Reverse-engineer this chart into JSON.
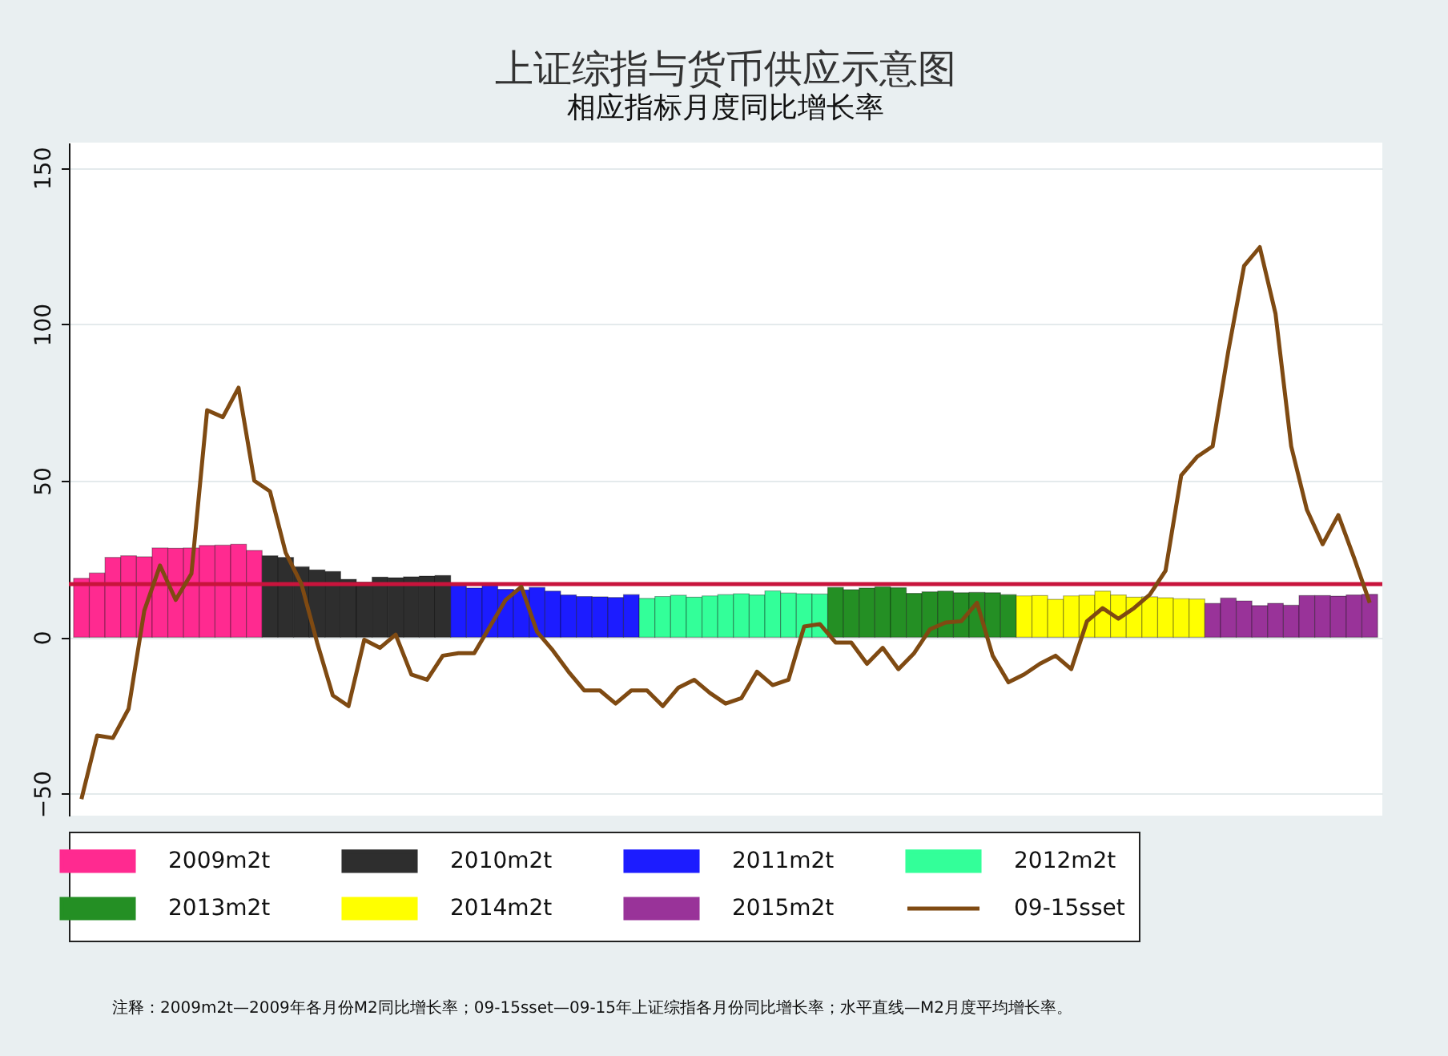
{
  "chart_data": {
    "type": "bar",
    "title": "上证综指与货币供应示意图",
    "subtitle": "相应指标月度同比增长率",
    "annotations": [
      "注释：2009m2t—2009年各月份M2同比增长率；09-15sset—09-15年上证综指各月份同比增长率；水平直线—M2月度平均增长率。"
    ],
    "categories": [
      null,
      null,
      null,
      null,
      null,
      null,
      null,
      null,
      null,
      null,
      null,
      null,
      null,
      null,
      null,
      null,
      null,
      null,
      null,
      null,
      null,
      null,
      null,
      null,
      null,
      null,
      null,
      null,
      null,
      null,
      null,
      null,
      null,
      null,
      null,
      null,
      null,
      null,
      null,
      null,
      null,
      null,
      null,
      null,
      null,
      null,
      null,
      null,
      null,
      null,
      null,
      null,
      null,
      null,
      null,
      null,
      null,
      null,
      null,
      null,
      null,
      null,
      null,
      null,
      null,
      null,
      null,
      null,
      null,
      null,
      null,
      null,
      null,
      null,
      null,
      null,
      null,
      null,
      null,
      null,
      null,
      null,
      null
    ],
    "series": [
      {
        "name": "2009m2t",
        "color": "#ff2a90",
        "values": [
          18.8,
          20.5,
          25.5,
          26,
          25.7,
          28.5,
          28.4,
          28.5,
          29.3,
          29.4,
          29.7,
          27.7,
          null,
          null,
          null,
          null,
          null,
          null,
          null,
          null,
          null,
          null,
          null,
          null,
          null,
          null,
          null,
          null,
          null,
          null,
          null,
          null,
          null,
          null,
          null,
          null,
          null,
          null,
          null,
          null,
          null,
          null,
          null,
          null,
          null,
          null,
          null,
          null,
          null,
          null,
          null,
          null,
          null,
          null,
          null,
          null,
          null,
          null,
          null,
          null,
          null,
          null,
          null,
          null,
          null,
          null,
          null,
          null,
          null,
          null,
          null,
          null,
          null,
          null,
          null,
          null,
          null,
          null,
          null,
          null,
          null,
          null,
          null
        ]
      },
      {
        "name": "2010m2t",
        "color": "#2e2e2e",
        "values": [
          null,
          null,
          null,
          null,
          null,
          null,
          null,
          null,
          null,
          null,
          null,
          null,
          26,
          25.5,
          22.5,
          21.5,
          21,
          18.5,
          17.6,
          19.2,
          19,
          19.3,
          19.5,
          19.7,
          null,
          null,
          null,
          null,
          null,
          null,
          null,
          null,
          null,
          null,
          null,
          null,
          null,
          null,
          null,
          null,
          null,
          null,
          null,
          null,
          null,
          null,
          null,
          null,
          null,
          null,
          null,
          null,
          null,
          null,
          null,
          null,
          null,
          null,
          null,
          null,
          null,
          null,
          null,
          null,
          null,
          null,
          null,
          null,
          null,
          null,
          null,
          null,
          null,
          null,
          null,
          null,
          null,
          null,
          null,
          null,
          null,
          null,
          null
        ]
      },
      {
        "name": "2011m2t",
        "color": "#1c1cff",
        "values": [
          null,
          null,
          null,
          null,
          null,
          null,
          null,
          null,
          null,
          null,
          null,
          null,
          null,
          null,
          null,
          null,
          null,
          null,
          null,
          null,
          null,
          null,
          null,
          null,
          17.2,
          15.7,
          16.6,
          15.3,
          15.1,
          15.9,
          14.7,
          13.5,
          13,
          12.9,
          12.7,
          13.6,
          null,
          null,
          null,
          null,
          null,
          null,
          null,
          null,
          null,
          null,
          null,
          null,
          null,
          null,
          null,
          null,
          null,
          null,
          null,
          null,
          null,
          null,
          null,
          null,
          null,
          null,
          null,
          null,
          null,
          null,
          null,
          null,
          null,
          null,
          null,
          null,
          null,
          null,
          null,
          null,
          null,
          null,
          null,
          null,
          null,
          null,
          null
        ]
      },
      {
        "name": "2012m2t",
        "color": "#33ff99",
        "values": [
          null,
          null,
          null,
          null,
          null,
          null,
          null,
          null,
          null,
          null,
          null,
          null,
          null,
          null,
          null,
          null,
          null,
          null,
          null,
          null,
          null,
          null,
          null,
          null,
          null,
          null,
          null,
          null,
          null,
          null,
          null,
          null,
          null,
          null,
          null,
          null,
          12.4,
          13,
          13.4,
          12.8,
          13.2,
          13.6,
          13.9,
          13.5,
          14.8,
          14.1,
          13.9,
          13.8,
          null,
          null,
          null,
          null,
          null,
          null,
          null,
          null,
          null,
          null,
          null,
          null,
          null,
          null,
          null,
          null,
          null,
          null,
          null,
          null,
          null,
          null,
          null,
          null,
          null,
          null,
          null,
          null,
          null,
          null,
          null,
          null,
          null,
          null,
          null
        ]
      },
      {
        "name": "2013m2t",
        "color": "#248f24",
        "values": [
          null,
          null,
          null,
          null,
          null,
          null,
          null,
          null,
          null,
          null,
          null,
          null,
          null,
          null,
          null,
          null,
          null,
          null,
          null,
          null,
          null,
          null,
          null,
          null,
          null,
          null,
          null,
          null,
          null,
          null,
          null,
          null,
          null,
          null,
          null,
          null,
          null,
          null,
          null,
          null,
          null,
          null,
          null,
          null,
          null,
          null,
          null,
          null,
          15.9,
          15.2,
          15.7,
          16.1,
          15.8,
          14,
          14.5,
          14.7,
          14.2,
          14.3,
          14.2,
          13.6,
          null,
          null,
          null,
          null,
          null,
          null,
          null,
          null,
          null,
          null,
          null,
          null,
          null,
          null,
          null,
          null,
          null,
          null,
          null,
          null,
          null,
          null,
          null
        ]
      },
      {
        "name": "2014m2t",
        "color": "#ffff00",
        "values": [
          null,
          null,
          null,
          null,
          null,
          null,
          null,
          null,
          null,
          null,
          null,
          null,
          null,
          null,
          null,
          null,
          null,
          null,
          null,
          null,
          null,
          null,
          null,
          null,
          null,
          null,
          null,
          null,
          null,
          null,
          null,
          null,
          null,
          null,
          null,
          null,
          null,
          null,
          null,
          null,
          null,
          null,
          null,
          null,
          null,
          null,
          null,
          null,
          null,
          null,
          null,
          null,
          null,
          null,
          null,
          null,
          null,
          null,
          null,
          null,
          13.2,
          13.3,
          12.1,
          13.2,
          13.4,
          14.7,
          13.5,
          12.8,
          12.9,
          12.6,
          12.3,
          12.2,
          null,
          null,
          null,
          null,
          null,
          null,
          null,
          null,
          null,
          null,
          null
        ]
      },
      {
        "name": "2015m2t",
        "color": "#993399",
        "values": [
          null,
          null,
          null,
          null,
          null,
          null,
          null,
          null,
          null,
          null,
          null,
          null,
          null,
          null,
          null,
          null,
          null,
          null,
          null,
          null,
          null,
          null,
          null,
          null,
          null,
          null,
          null,
          null,
          null,
          null,
          null,
          null,
          null,
          null,
          null,
          null,
          null,
          null,
          null,
          null,
          null,
          null,
          null,
          null,
          null,
          null,
          null,
          null,
          null,
          null,
          null,
          null,
          null,
          null,
          null,
          null,
          null,
          null,
          null,
          null,
          null,
          null,
          null,
          null,
          null,
          null,
          null,
          null,
          null,
          null,
          null,
          null,
          10.8,
          12.5,
          11.6,
          10.1,
          10.8,
          10.2,
          13.3,
          13.3,
          13.1,
          13.5,
          13.7
        ]
      },
      {
        "name": "09-15sset",
        "type": "line",
        "color": "#7f4a12",
        "values": [
          -51.7,
          -31.4,
          -32.2,
          -22.9,
          8.5,
          22.9,
          11.9,
          20.3,
          72.5,
          70.3,
          79.7,
          50,
          46.6,
          27,
          17,
          -1.7,
          -18.6,
          -22,
          -0.8,
          -3.4,
          0.8,
          -11.9,
          -13.6,
          -5.9,
          -5.1,
          -5.1,
          3.4,
          11.9,
          16.1,
          1.7,
          -4.2,
          -11,
          -17,
          -17,
          -21.2,
          -17,
          -17,
          -22,
          -16.1,
          -13.6,
          -17.8,
          -21.2,
          -19.5,
          -11,
          -15.3,
          -13.6,
          3.4,
          4.2,
          -1.7,
          -1.7,
          -8.5,
          -3.4,
          -10.2,
          -5.1,
          2.5,
          4.7,
          5.1,
          11,
          -5.9,
          -14.4,
          -11.9,
          -8.5,
          -5.9,
          -10.2,
          5.1,
          9.3,
          5.9,
          9.3,
          13.6,
          21.2,
          51.7,
          57.6,
          61,
          91.5,
          118.6,
          124.6,
          103.4,
          61,
          40.7,
          29.7,
          39,
          25.4,
          11
        ]
      }
    ],
    "ref_lines": [
      {
        "axis": "y",
        "value": 17,
        "color": "#c8143c"
      }
    ],
    "ylim": [
      -57,
      158
    ],
    "yticks": [
      -50,
      0,
      50,
      100,
      150
    ],
    "grid": "y",
    "legend": "bottom",
    "tick_labels": "y"
  }
}
